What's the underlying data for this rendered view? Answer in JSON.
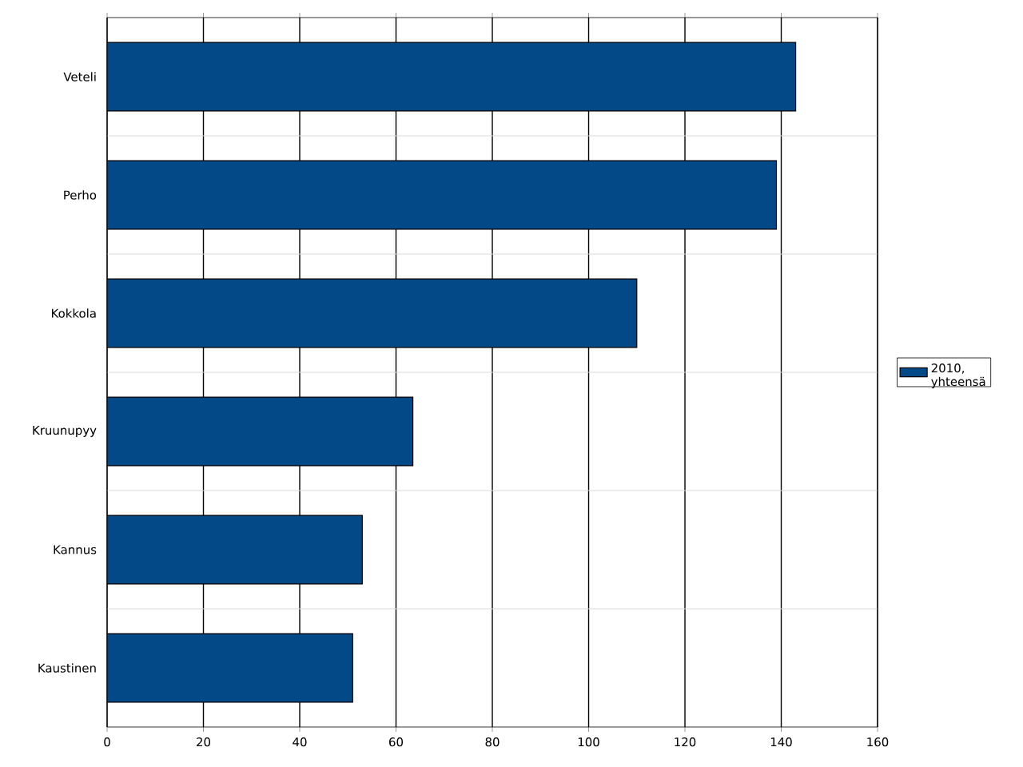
{
  "chart_data": {
    "type": "bar",
    "orientation": "horizontal",
    "categories": [
      "Veteli",
      "Perho",
      "Kokkola",
      "Kruunupyy",
      "Kannus",
      "Kaustinen"
    ],
    "series": [
      {
        "name": "2010, yhteensä",
        "color": "#034887",
        "values": [
          143,
          139,
          110,
          63.5,
          53,
          51
        ]
      }
    ],
    "xlim": [
      0,
      160
    ],
    "xticks": [
      0,
      20,
      40,
      60,
      80,
      100,
      120,
      140,
      160
    ],
    "grid": true,
    "legend": "right"
  }
}
